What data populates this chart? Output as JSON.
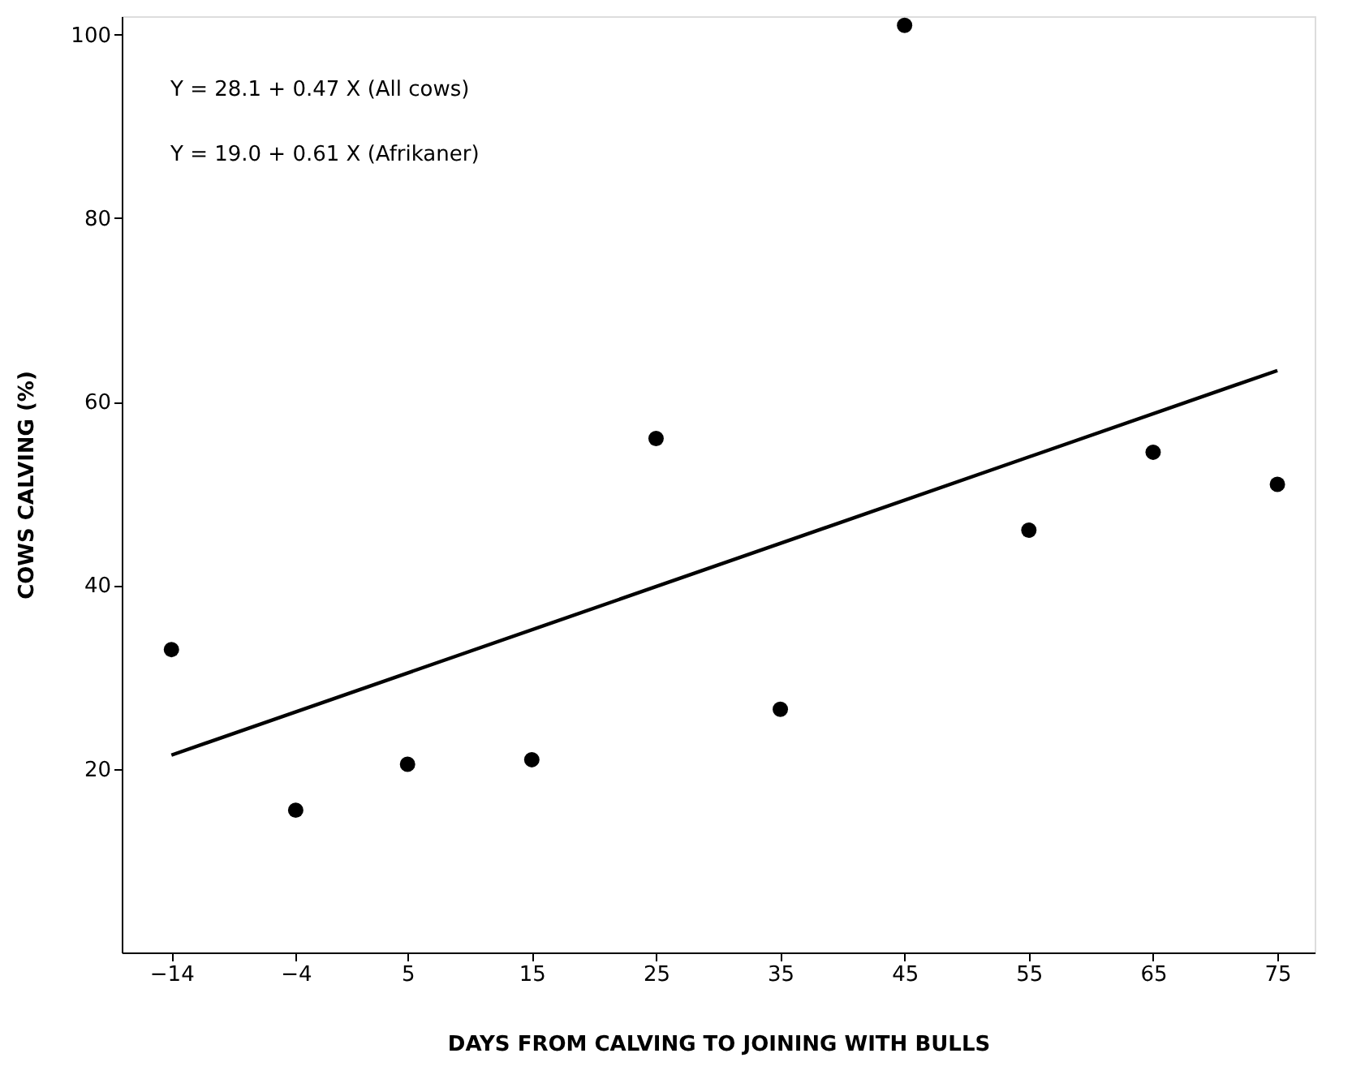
{
  "chart_data": {
    "type": "scatter",
    "xlabel": "DAYS FROM CALVING TO JOINING WITH BULLS",
    "ylabel": "COWS CALVING (%)",
    "x": [
      -14,
      -4,
      5,
      15,
      25,
      35,
      45,
      55,
      65,
      75
    ],
    "series": [
      {
        "color": "#000000",
        "values": [
          33,
          15.5,
          20.5,
          21,
          56,
          26.5,
          101,
          46,
          54.5,
          51
        ],
        "marker": "circle"
      },
      {
        "type": "line",
        "color": "#000000",
        "x": [
          -14,
          75
        ],
        "values": [
          21.5,
          63.4
        ],
        "line_style": "solid",
        "marker": "none"
      }
    ],
    "xlim": [
      -18,
      78
    ],
    "xticks": [
      -14,
      -4,
      5,
      15,
      25,
      35,
      45,
      55,
      65,
      75
    ],
    "ylim": [
      0,
      102
    ],
    "yticks": [
      20,
      40,
      60,
      80,
      100
    ],
    "annotations": [
      "Y = 28.1 + 0.47 X  (All cows)",
      "Y = 19.0 + 0.61 X  (Afrikaner)"
    ],
    "grid": false
  }
}
